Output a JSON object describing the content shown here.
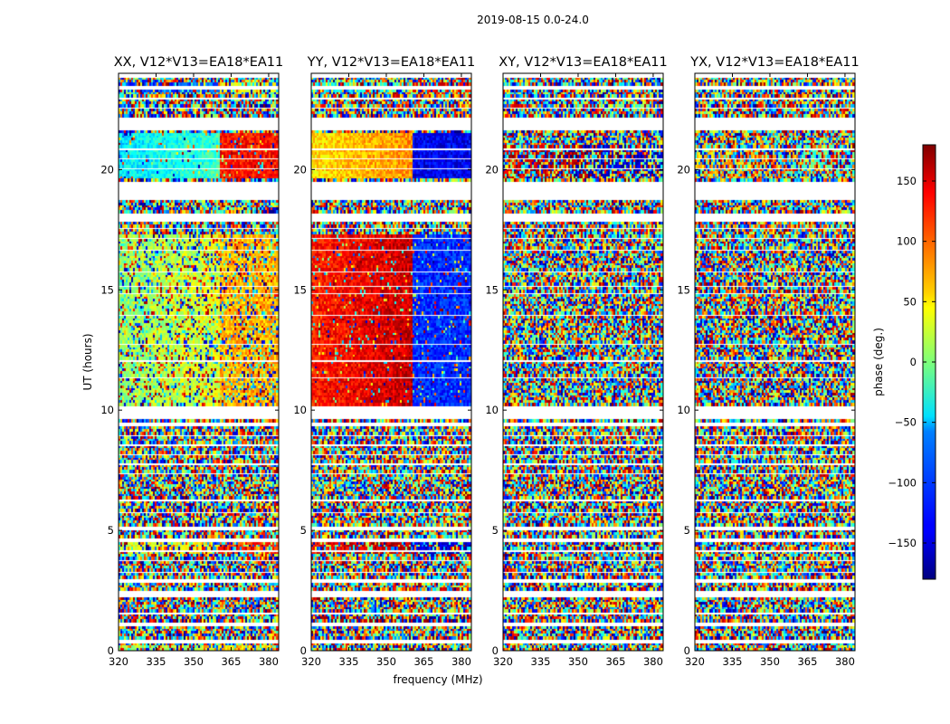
{
  "chart_data": {
    "type": "heatmap",
    "suptitle": "2019-08-15 0.0-24.0",
    "xlabel": "frequency (MHz)",
    "ylabel": "UT (hours)",
    "xlim": [
      320,
      384
    ],
    "ylim": [
      0,
      24
    ],
    "xticks": [
      320,
      335,
      350,
      365,
      380
    ],
    "yticks": [
      0,
      5,
      10,
      15,
      20
    ],
    "colorbar": {
      "label": "phase (deg.)",
      "range": [
        -180,
        180
      ],
      "ticks": [
        150,
        100,
        50,
        0,
        -50,
        -100,
        -150
      ],
      "tick_labels": [
        "150",
        "100",
        "50",
        "0",
        "−50",
        "−100",
        "−150"
      ],
      "colormap": "jet"
    },
    "flagged_ut_ranges": [
      [
        0.35,
        0.45
      ],
      [
        0.95,
        1.15
      ],
      [
        1.5,
        1.6
      ],
      [
        1.95,
        2.05
      ],
      [
        2.25,
        2.45
      ],
      [
        2.85,
        2.95
      ],
      [
        3.2,
        3.3
      ],
      [
        3.7,
        3.8
      ],
      [
        4.1,
        4.2
      ],
      [
        4.55,
        4.65
      ],
      [
        5.05,
        5.15
      ],
      [
        5.7,
        5.8
      ],
      [
        6.2,
        6.3
      ],
      [
        6.95,
        7.0
      ],
      [
        7.35,
        7.4
      ],
      [
        7.75,
        7.8
      ],
      [
        8.15,
        8.2
      ],
      [
        8.55,
        8.6
      ],
      [
        8.95,
        9.0
      ],
      [
        9.35,
        9.55
      ],
      [
        9.65,
        10.25
      ],
      [
        11.35,
        11.45
      ],
      [
        12.05,
        12.15
      ],
      [
        12.75,
        12.85
      ],
      [
        13.95,
        14.05
      ],
      [
        14.85,
        14.95
      ],
      [
        15.1,
        15.2
      ],
      [
        15.75,
        15.85
      ],
      [
        16.65,
        16.75
      ],
      [
        17.15,
        17.25
      ],
      [
        17.5,
        17.65
      ],
      [
        17.85,
        18.25
      ],
      [
        18.75,
        19.55
      ],
      [
        20.05,
        20.15
      ],
      [
        20.45,
        20.55
      ],
      [
        20.85,
        20.95
      ],
      [
        21.65,
        22.25
      ],
      [
        22.55,
        22.65
      ],
      [
        22.95,
        23.05
      ],
      [
        23.3,
        23.5
      ],
      [
        23.85,
        24.0
      ]
    ],
    "panels": [
      {
        "title": "XX, V12*V13=EA18*EA11",
        "coherent_regions": [
          {
            "ut": [
              19.6,
              21.5
            ],
            "freq_break": 361,
            "phase_below": -40,
            "phase_above": 130,
            "gradient": 0.9
          },
          {
            "ut": [
              23.2,
              23.6
            ],
            "freq_break": 361,
            "phase_below": -110,
            "phase_above": 40,
            "gradient": 0.5
          },
          {
            "ut": [
              10.2,
              17.3
            ],
            "freq_break": 361,
            "phase_below": 20,
            "phase_above": 70,
            "gradient": 0.6
          },
          {
            "ut": [
              4.0,
              4.5
            ],
            "freq_break": 361,
            "phase_below": 40,
            "phase_above": 120,
            "gradient": 0.5
          },
          {
            "ut": [
              0.0,
              0.25
            ],
            "freq_break": 361,
            "phase_below": 20,
            "phase_above": 60,
            "gradient": 0.5
          }
        ]
      },
      {
        "title": "YY, V12*V13=EA18*EA11",
        "coherent_regions": [
          {
            "ut": [
              19.6,
              21.5
            ],
            "freq_break": 361,
            "phase_below": 70,
            "phase_above": -140,
            "gradient": 1.0
          },
          {
            "ut": [
              23.2,
              23.6
            ],
            "freq_break": 361,
            "phase_below": -30,
            "phase_above": 140,
            "gradient": 0.4
          },
          {
            "ut": [
              10.2,
              17.3
            ],
            "freq_break": 361,
            "phase_below": 140,
            "phase_above": -120,
            "gradient": 0.9
          },
          {
            "ut": [
              4.0,
              4.5
            ],
            "freq_break": 361,
            "phase_below": 150,
            "phase_above": -150,
            "gradient": 0.5
          },
          {
            "ut": [
              1.2,
              1.4
            ],
            "freq_break": 361,
            "phase_below": 170,
            "phase_above": -170,
            "gradient": 0.3
          },
          {
            "ut": [
              2.1,
              2.2
            ],
            "freq_break": 361,
            "phase_below": 170,
            "phase_above": -170,
            "gradient": 0.3
          }
        ]
      },
      {
        "title": "XY, V12*V13=EA18*EA11",
        "coherent_regions": [
          {
            "ut": [
              19.6,
              21.0
            ],
            "freq_break": 356,
            "phase_below": 160,
            "phase_above": -160,
            "gradient": 0.35
          }
        ]
      },
      {
        "title": "YX, V12*V13=EA18*EA11",
        "coherent_regions": [
          {
            "ut": [
              19.6,
              21.0
            ],
            "freq_break": 358,
            "phase_below": 80,
            "phase_above": -20,
            "gradient": 0.25
          }
        ]
      }
    ]
  }
}
